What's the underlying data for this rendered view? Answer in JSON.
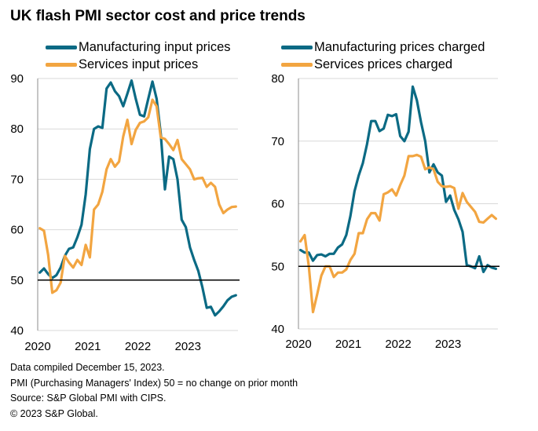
{
  "title": "UK flash PMI sector cost and price trends",
  "colors": {
    "manufacturing": "#0b6a84",
    "services": "#f2a541",
    "grid": "#d9d9d9",
    "axis": "#8c8c8c",
    "reference": "#000000"
  },
  "footer": {
    "lines": [
      "Data compiled December 15, 2023.",
      "PMI (Purchasing Managers' Index) 50 = no change on prior month",
      "Source: S&P Global PMI with CIPS.",
      "© 2023 S&P Global."
    ]
  },
  "chart_data": [
    {
      "type": "line",
      "title": "",
      "xlabel": "",
      "ylabel": "",
      "x_start": "2020-01",
      "x_end": "2023-12",
      "frequency": "monthly",
      "xticks": [
        "2020",
        "2021",
        "2022",
        "2023"
      ],
      "ylim": [
        40,
        90
      ],
      "yticks": [
        "40",
        "50",
        "60",
        "70",
        "80",
        "90"
      ],
      "grid": true,
      "reference_line": 50,
      "legend": "top",
      "series": [
        {
          "name": "Manufacturing input prices",
          "color_key": "manufacturing",
          "values": [
            51.5,
            52.3,
            51.2,
            50.4,
            51.0,
            52.5,
            54.8,
            56.2,
            56.5,
            58.5,
            61.0,
            67.0,
            76.0,
            80.0,
            80.5,
            80.2,
            88.0,
            89.2,
            87.5,
            86.5,
            84.5,
            87.0,
            89.6,
            86.0,
            82.8,
            82.5,
            86.0,
            89.4,
            86.0,
            79.0,
            68.0,
            74.5,
            74.0,
            70.0,
            62.0,
            60.5,
            56.5,
            54.0,
            51.8,
            48.5,
            44.5,
            44.7,
            43.0,
            43.8,
            44.8,
            46.0,
            46.7,
            47.0
          ]
        },
        {
          "name": "Services input prices",
          "color_key": "services",
          "values": [
            60.3,
            59.8,
            55.0,
            47.5,
            48.0,
            49.5,
            54.8,
            53.5,
            52.5,
            54.0,
            53.0,
            57.0,
            54.5,
            64.0,
            65.0,
            67.5,
            72.0,
            74.0,
            72.5,
            73.5,
            78.5,
            81.8,
            77.0,
            79.8,
            81.2,
            81.5,
            82.3,
            85.8,
            84.5,
            78.3,
            78.0,
            77.0,
            75.8,
            77.8,
            74.0,
            73.0,
            72.0,
            70.0,
            70.2,
            70.3,
            68.5,
            69.3,
            68.5,
            65.0,
            63.3,
            64.0,
            64.5,
            64.6
          ]
        }
      ]
    },
    {
      "type": "line",
      "title": "",
      "xlabel": "",
      "ylabel": "",
      "x_start": "2020-01",
      "x_end": "2023-12",
      "frequency": "monthly",
      "xticks": [
        "2020",
        "2021",
        "2022",
        "2023"
      ],
      "ylim": [
        40,
        80
      ],
      "yticks": [
        "40",
        "50",
        "60",
        "70",
        "80"
      ],
      "grid": true,
      "reference_line": 50,
      "legend": "top",
      "series": [
        {
          "name": "Manufacturing prices charged",
          "color_key": "manufacturing",
          "values": [
            52.6,
            52.2,
            52.2,
            50.9,
            51.8,
            51.9,
            51.6,
            52.0,
            52.0,
            53.0,
            53.5,
            55.0,
            58.0,
            62.0,
            64.5,
            66.5,
            69.5,
            73.2,
            73.2,
            71.6,
            72.0,
            74.2,
            74.0,
            74.3,
            70.8,
            70.0,
            71.5,
            78.7,
            76.5,
            73.0,
            70.0,
            65.0,
            66.3,
            65.0,
            64.5,
            60.3,
            61.3,
            59.0,
            57.5,
            55.5,
            50.2,
            50.0,
            49.7,
            51.6,
            49.1,
            50.2,
            49.8,
            49.6
          ]
        },
        {
          "name": "Services prices charged",
          "color_key": "services",
          "values": [
            54.0,
            55.0,
            50.0,
            42.7,
            45.5,
            48.5,
            50.0,
            50.0,
            48.3,
            49.0,
            49.0,
            49.5,
            51.0,
            52.0,
            55.3,
            55.3,
            57.5,
            58.5,
            58.5,
            57.3,
            61.5,
            61.8,
            62.3,
            61.3,
            63.0,
            64.5,
            67.6,
            67.6,
            67.8,
            67.5,
            65.5,
            65.8,
            65.5,
            63.5,
            62.8,
            62.7,
            62.8,
            62.5,
            59.2,
            61.7,
            60.3,
            59.5,
            58.7,
            57.1,
            57.0,
            57.6,
            58.2,
            57.6
          ]
        }
      ]
    }
  ]
}
